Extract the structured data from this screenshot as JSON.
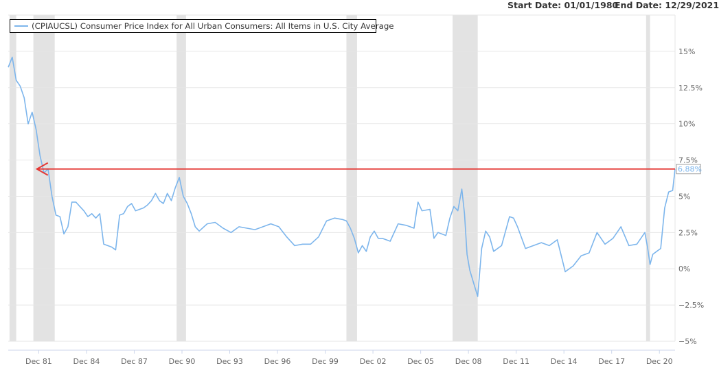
{
  "header": {
    "start_label": "Start Date: 01/01/1980",
    "end_label": "End Date: 12/29/2021"
  },
  "chart_data": {
    "type": "line",
    "legend": "(CPIAUCSL) Consumer Price Index for All Urban Consumers: All Items in U.S. City Average",
    "series_color": "#7cb5ec",
    "annotation_color": "#e53935",
    "recession_color": "#e3e3e3",
    "ylim": [
      -5,
      17.5
    ],
    "ytick_values": [
      -5,
      -2.5,
      0,
      2.5,
      5,
      7.5,
      10,
      12.5,
      15
    ],
    "ytick_labels": [
      "−5%",
      "−2.5%",
      "0%",
      "2.5%",
      "5%",
      "7.5%",
      "10%",
      "12.5%",
      "15%"
    ],
    "xlim": [
      1980.0,
      2021.9
    ],
    "xtick_values": [
      1981.917,
      1984.917,
      1987.917,
      1990.917,
      1993.917,
      1996.917,
      1999.917,
      2002.917,
      2005.917,
      2008.917,
      2011.917,
      2014.917,
      2017.917,
      2020.917
    ],
    "xtick_labels": [
      "Dec 81",
      "Dec 84",
      "Dec 87",
      "Dec 90",
      "Dec 93",
      "Dec 96",
      "Dec 99",
      "Dec 02",
      "Dec 05",
      "Dec 08",
      "Dec 11",
      "Dec 14",
      "Dec 17",
      "Dec 20"
    ],
    "recessions": [
      [
        1980.08,
        1980.5
      ],
      [
        1981.58,
        1982.92
      ],
      [
        1990.58,
        1991.17
      ],
      [
        2001.25,
        2001.92
      ],
      [
        2007.92,
        2009.5
      ],
      [
        2020.08,
        2020.33
      ]
    ],
    "last_value": 6.88,
    "last_value_label": "6.88%",
    "arrow": {
      "from_x": 2021.9,
      "to_x": 1981.8,
      "y": 6.88
    },
    "x": [
      1980.0,
      1980.25,
      1980.5,
      1980.75,
      1981.0,
      1981.25,
      1981.5,
      1981.75,
      1982.0,
      1982.25,
      1982.5,
      1982.75,
      1983.0,
      1983.25,
      1983.5,
      1983.75,
      1984.0,
      1984.25,
      1984.5,
      1984.75,
      1985.0,
      1985.25,
      1985.5,
      1985.75,
      1986.0,
      1986.25,
      1986.5,
      1986.75,
      1987.0,
      1987.25,
      1987.5,
      1987.75,
      1988.0,
      1988.25,
      1988.5,
      1988.75,
      1989.0,
      1989.25,
      1989.5,
      1989.75,
      1990.0,
      1990.25,
      1990.5,
      1990.75,
      1991.0,
      1991.25,
      1991.5,
      1991.75,
      1992.0,
      1992.5,
      1993.0,
      1993.5,
      1994.0,
      1994.5,
      1995.0,
      1995.5,
      1996.0,
      1996.5,
      1997.0,
      1997.5,
      1998.0,
      1998.5,
      1999.0,
      1999.5,
      2000.0,
      2000.5,
      2001.0,
      2001.25,
      2001.5,
      2001.75,
      2002.0,
      2002.25,
      2002.5,
      2002.75,
      2003.0,
      2003.25,
      2003.5,
      2004.0,
      2004.5,
      2005.0,
      2005.5,
      2005.75,
      2006.0,
      2006.5,
      2006.75,
      2007.0,
      2007.5,
      2007.75,
      2008.0,
      2008.25,
      2008.5,
      2008.67,
      2008.83,
      2009.0,
      2009.25,
      2009.5,
      2009.75,
      2010.0,
      2010.25,
      2010.5,
      2011.0,
      2011.5,
      2011.75,
      2012.0,
      2012.5,
      2013.0,
      2013.5,
      2014.0,
      2014.5,
      2015.0,
      2015.5,
      2016.0,
      2016.5,
      2017.0,
      2017.5,
      2018.0,
      2018.5,
      2019.0,
      2019.5,
      2020.0,
      2020.17,
      2020.33,
      2020.5,
      2020.75,
      2021.0,
      2021.25,
      2021.5,
      2021.75,
      2021.9
    ],
    "y": [
      13.9,
      14.6,
      13.0,
      12.6,
      11.8,
      10.0,
      10.8,
      9.6,
      7.8,
      6.6,
      6.9,
      5.0,
      3.7,
      3.6,
      2.4,
      2.9,
      4.6,
      4.6,
      4.3,
      4.0,
      3.6,
      3.8,
      3.5,
      3.8,
      1.7,
      1.6,
      1.5,
      1.3,
      3.7,
      3.8,
      4.3,
      4.5,
      4.0,
      4.1,
      4.2,
      4.4,
      4.7,
      5.2,
      4.7,
      4.5,
      5.2,
      4.7,
      5.6,
      6.3,
      5.0,
      4.5,
      3.8,
      2.9,
      2.6,
      3.1,
      3.2,
      2.8,
      2.5,
      2.9,
      2.8,
      2.7,
      2.9,
      3.1,
      2.9,
      2.2,
      1.6,
      1.7,
      1.7,
      2.2,
      3.3,
      3.5,
      3.4,
      3.3,
      2.8,
      2.1,
      1.1,
      1.6,
      1.2,
      2.2,
      2.6,
      2.1,
      2.1,
      1.9,
      3.1,
      3.0,
      2.8,
      4.6,
      4.0,
      4.1,
      2.1,
      2.5,
      2.3,
      3.5,
      4.3,
      4.0,
      5.5,
      3.8,
      1.0,
      -0.1,
      -1.0,
      -1.9,
      1.4,
      2.6,
      2.2,
      1.2,
      1.6,
      3.6,
      3.5,
      2.9,
      1.4,
      1.6,
      1.8,
      1.6,
      2.0,
      -0.2,
      0.2,
      0.9,
      1.1,
      2.5,
      1.7,
      2.1,
      2.9,
      1.6,
      1.7,
      2.5,
      1.5,
      0.3,
      1.0,
      1.2,
      1.4,
      4.2,
      5.3,
      5.4,
      6.88
    ]
  }
}
